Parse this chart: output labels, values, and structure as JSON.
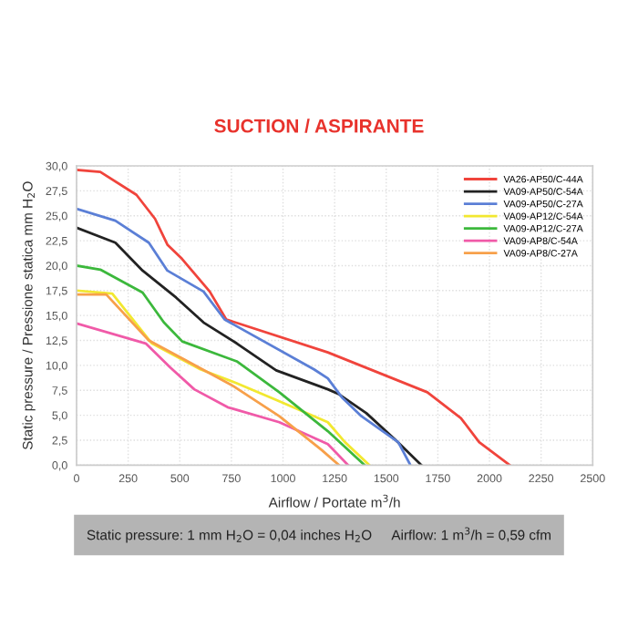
{
  "chart_data": {
    "type": "line",
    "title": "SUCTION / ASPIRANTE",
    "xlabel": "Airflow / Portate m$^{3}$/h",
    "ylabel": "Static pressure / Pressione statica mm H$_{2}$O",
    "annotations": [
      "Static pressure: 1 mm H$_{2}$O = 0,04 inches H$_{2}$O     Airflow: 1 m$^{3}$/h = 0,59 cfm"
    ],
    "xlim": [
      0,
      2500
    ],
    "xticks": [
      0,
      250,
      500,
      750,
      1000,
      1250,
      1500,
      1750,
      2000,
      2250,
      2500
    ],
    "ylim": [
      0,
      30
    ],
    "yticks": [
      {
        "value": 0,
        "label": "0,0"
      },
      {
        "value": 2.5,
        "label": "2,5"
      },
      {
        "value": 5,
        "label": "5,0"
      },
      {
        "value": 7.5,
        "label": "7,5"
      },
      {
        "value": 10,
        "label": "10,0"
      },
      {
        "value": 12.5,
        "label": "12,5"
      },
      {
        "value": 15,
        "label": "15,0"
      },
      {
        "value": 17.5,
        "label": "17,5"
      },
      {
        "value": 20,
        "label": "20,0"
      },
      {
        "value": 22.5,
        "label": "22,5"
      },
      {
        "value": 25,
        "label": "25,0"
      },
      {
        "value": 27.5,
        "label": "27,5"
      },
      {
        "value": 30,
        "label": "30,0"
      }
    ],
    "grid": true,
    "legend": "top right",
    "marker": "none",
    "line_style": "solid",
    "series": [
      {
        "name": "VA26-AP50/C-44A",
        "color": "#f0443c",
        "x": [
          0,
          115,
          290,
          380,
          440,
          510,
          645,
          725,
          1217,
          1699,
          1862,
          1950,
          2098
        ],
        "values": [
          29.6,
          29.4,
          27.1,
          24.7,
          22.1,
          20.7,
          17.4,
          14.6,
          11.3,
          7.3,
          4.7,
          2.3,
          0
        ]
      },
      {
        "name": "VA09-AP50/C-54A",
        "color": "#222222",
        "x": [
          0,
          188,
          320,
          482,
          615,
          776,
          967,
          1217,
          1271,
          1404,
          1551,
          1670
        ],
        "values": [
          23.8,
          22.3,
          19.5,
          16.8,
          14.3,
          12.2,
          9.5,
          7.6,
          7.1,
          5.2,
          2.4,
          0
        ]
      },
      {
        "name": "VA09-AP50/C-27A",
        "color": "#5b7fd6",
        "x": [
          0,
          188,
          350,
          440,
          615,
          717,
          1150,
          1217,
          1285,
          1380,
          1558,
          1617
        ],
        "values": [
          25.7,
          24.5,
          22.3,
          19.5,
          17.4,
          14.6,
          9.6,
          8.7,
          6.8,
          4.9,
          2.3,
          0
        ]
      },
      {
        "name": "VA09-AP12/C-54A",
        "color": "#f2e830",
        "x": [
          0,
          173,
          365,
          600,
          776,
          982,
          1217,
          1300,
          1418
        ],
        "values": [
          17.5,
          17.2,
          12.2,
          9.6,
          8.2,
          6.4,
          4.3,
          2.3,
          0
        ]
      },
      {
        "name": "VA09-AP12/C-27A",
        "color": "#3cb83c",
        "x": [
          0,
          115,
          320,
          423,
          512,
          776,
          982,
          1217,
          1395
        ],
        "values": [
          20,
          19.6,
          17.3,
          14.3,
          12.4,
          10.4,
          7.3,
          3.4,
          0
        ]
      },
      {
        "name": "VA09-AP8/C-54A",
        "color": "#f05aa8",
        "x": [
          0,
          335,
          453,
          570,
          732,
          982,
          1217,
          1315
        ],
        "values": [
          14.2,
          12.2,
          9.8,
          7.6,
          5.8,
          4.3,
          2.1,
          0
        ]
      },
      {
        "name": "VA09-AP8/C-27A",
        "color": "#f7a04a",
        "x": [
          0,
          144,
          350,
          512,
          761,
          982,
          1188,
          1271
        ],
        "values": [
          17.1,
          17.1,
          12.5,
          10.7,
          7.9,
          4.9,
          1.5,
          0
        ]
      }
    ]
  }
}
